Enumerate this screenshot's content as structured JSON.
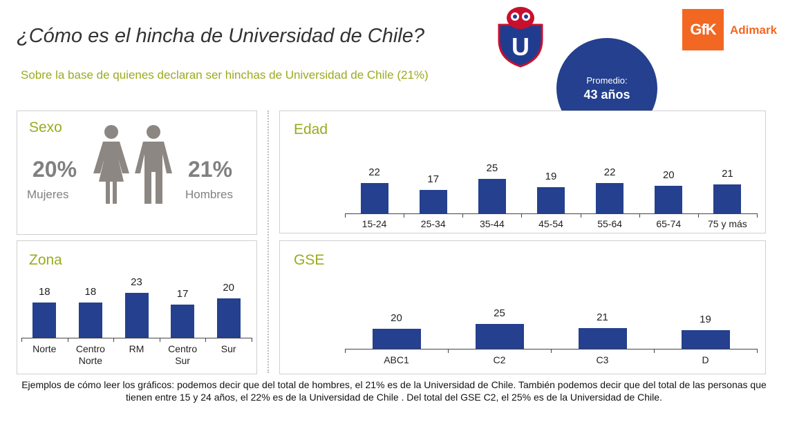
{
  "header": {
    "title": "¿Cómo es el hincha de Universidad de Chile?",
    "subtitle": "Sobre la base de quienes declaran ser hinchas de Universidad de Chile (21%)",
    "brand_gfk": "GfK",
    "brand_adimark": "Adimark",
    "club_logo_letter": "U"
  },
  "promedio": {
    "label": "Promedio:",
    "value": "43 años"
  },
  "sexo": {
    "title": "Sexo",
    "women_value": "20%",
    "women_label": "Mujeres",
    "men_value": "21%",
    "men_label": "Hombres"
  },
  "colors": {
    "bar": "#24408e",
    "accent": "#9aab1e",
    "brand": "#f26722"
  },
  "chart_data": [
    {
      "type": "bar",
      "title": "Edad",
      "categories": [
        "15-24",
        "25-34",
        "35-44",
        "45-54",
        "55-64",
        "65-74",
        "75 y más"
      ],
      "values": [
        22,
        17,
        25,
        19,
        22,
        20,
        21
      ]
    },
    {
      "type": "bar",
      "title": "Zona",
      "categories": [
        "Norte",
        "Centro Norte",
        "RM",
        "Centro Sur",
        "Sur"
      ],
      "values": [
        18,
        18,
        23,
        17,
        20
      ]
    },
    {
      "type": "bar",
      "title": "GSE",
      "categories": [
        "ABC1",
        "C2",
        "C3",
        "D"
      ],
      "values": [
        20,
        25,
        21,
        19
      ]
    }
  ],
  "footer": "Ejemplos de cómo leer los gráficos: podemos decir que del total de hombres, el 21% es de la Universidad de Chile. También podemos decir que del total de las personas que tienen entre 15 y 24 años, el 22% es de la Universidad de Chile . Del total del GSE C2, el 25% es de la Universidad de Chile."
}
